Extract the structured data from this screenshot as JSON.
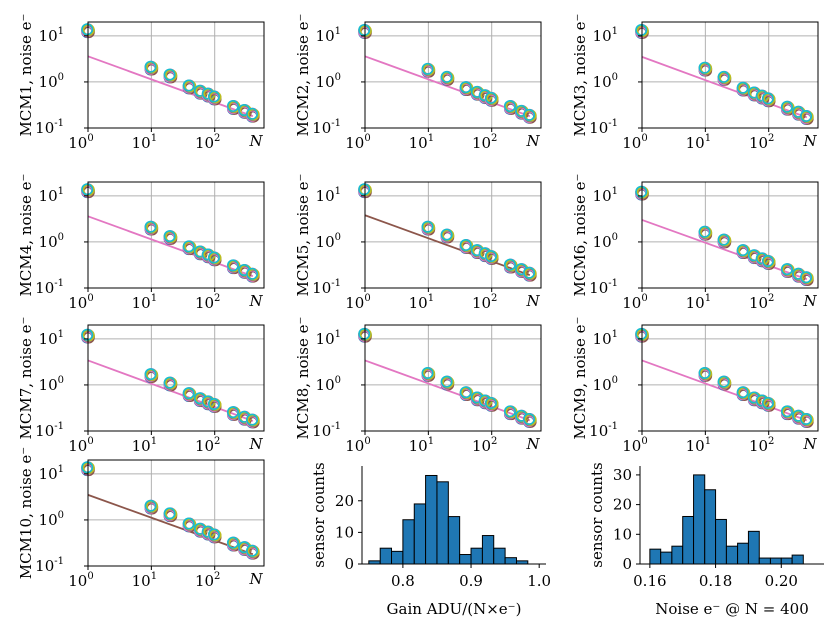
{
  "figure": {
    "log_panel_common": {
      "ylabel_suffix": "noise",
      "x_end_label": "N",
      "xlim": [
        1,
        600
      ],
      "ylim": [
        0.1,
        20
      ],
      "x_ticks": [
        {
          "base": "10",
          "exp": "0"
        },
        {
          "base": "10",
          "exp": "1"
        },
        {
          "base": "10",
          "exp": "2"
        }
      ],
      "y_ticks": [
        {
          "base": "10",
          "exp": "-1"
        },
        {
          "base": "10",
          "exp": "0"
        },
        {
          "base": "10",
          "exp": "1"
        }
      ],
      "e_symbol": "e",
      "e_sup": "−"
    }
  },
  "chart_data": [
    {
      "type": "scatter",
      "name": "MCM1",
      "ylabel": "MCM1, noise e⁻",
      "xscale": "log",
      "yscale": "log",
      "x": [
        1,
        10,
        20,
        40,
        60,
        80,
        100,
        200,
        300,
        400
      ],
      "y": [
        13,
        2.0,
        1.35,
        0.78,
        0.6,
        0.52,
        0.45,
        0.28,
        0.23,
        0.19
      ],
      "fit": {
        "x": [
          1,
          400
        ],
        "y": [
          3.6,
          0.18
        ],
        "color": "#e377c2"
      },
      "colors": [
        "#1f77b4",
        "#ff7f0e",
        "#2ca02c",
        "#d62728",
        "#9467bd",
        "#8c564b",
        "#e377c2",
        "#7f7f7f",
        "#bcbd22",
        "#17becf"
      ]
    },
    {
      "type": "scatter",
      "name": "MCM2",
      "ylabel": "MCM2, noise e⁻",
      "xscale": "log",
      "yscale": "log",
      "x": [
        1,
        10,
        20,
        40,
        60,
        80,
        100,
        200,
        300,
        400
      ],
      "y": [
        12.5,
        1.8,
        1.2,
        0.72,
        0.57,
        0.48,
        0.42,
        0.28,
        0.22,
        0.18
      ],
      "fit": {
        "x": [
          1,
          400
        ],
        "y": [
          3.6,
          0.18
        ],
        "color": "#e377c2"
      },
      "colors": [
        "#1f77b4",
        "#ff7f0e",
        "#2ca02c",
        "#d62728",
        "#9467bd",
        "#8c564b",
        "#e377c2",
        "#7f7f7f",
        "#bcbd22",
        "#17becf"
      ]
    },
    {
      "type": "scatter",
      "name": "MCM3",
      "ylabel": "MCM3, noise e⁻",
      "xscale": "log",
      "yscale": "log",
      "x": [
        1,
        10,
        20,
        40,
        60,
        80,
        100,
        200,
        300,
        400
      ],
      "y": [
        12.5,
        1.9,
        1.2,
        0.7,
        0.55,
        0.47,
        0.41,
        0.27,
        0.21,
        0.17
      ],
      "fit": {
        "x": [
          1,
          400
        ],
        "y": [
          3.5,
          0.17
        ],
        "color": "#e377c2"
      },
      "colors": [
        "#1f77b4",
        "#ff7f0e",
        "#2ca02c",
        "#d62728",
        "#9467bd",
        "#8c564b",
        "#e377c2",
        "#7f7f7f",
        "#bcbd22",
        "#17becf"
      ]
    },
    {
      "type": "scatter",
      "name": "MCM4",
      "ylabel": "MCM4, noise e⁻",
      "xscale": "log",
      "yscale": "log",
      "x": [
        1,
        10,
        20,
        40,
        60,
        80,
        100,
        200,
        300,
        400
      ],
      "y": [
        13,
        2.0,
        1.25,
        0.75,
        0.58,
        0.5,
        0.43,
        0.29,
        0.23,
        0.19
      ],
      "fit": {
        "x": [
          1,
          400
        ],
        "y": [
          3.6,
          0.18
        ],
        "color": "#e377c2"
      },
      "colors": [
        "#1f77b4",
        "#ff7f0e",
        "#2ca02c",
        "#d62728",
        "#9467bd",
        "#8c564b",
        "#e377c2",
        "#7f7f7f",
        "#bcbd22",
        "#17becf"
      ]
    },
    {
      "type": "scatter",
      "name": "MCM5",
      "ylabel": "MCM5, noise e⁻",
      "xscale": "log",
      "yscale": "log",
      "x": [
        1,
        10,
        20,
        40,
        60,
        80,
        100,
        200,
        300,
        400
      ],
      "y": [
        13,
        2.0,
        1.35,
        0.8,
        0.62,
        0.53,
        0.46,
        0.3,
        0.24,
        0.2
      ],
      "fit": {
        "x": [
          1,
          400
        ],
        "y": [
          3.8,
          0.19
        ],
        "color": "#8c564b"
      },
      "colors": [
        "#1f77b4",
        "#ff7f0e",
        "#2ca02c",
        "#d62728",
        "#9467bd",
        "#8c564b",
        "#e377c2",
        "#7f7f7f",
        "#bcbd22",
        "#17becf"
      ]
    },
    {
      "type": "scatter",
      "name": "MCM6",
      "ylabel": "MCM6, noise e⁻",
      "xscale": "log",
      "yscale": "log",
      "x": [
        1,
        10,
        20,
        40,
        60,
        80,
        100,
        200,
        300,
        400
      ],
      "y": [
        11.5,
        1.55,
        1.05,
        0.62,
        0.48,
        0.41,
        0.36,
        0.24,
        0.19,
        0.16
      ],
      "fit": {
        "x": [
          1,
          400
        ],
        "y": [
          3.0,
          0.155
        ],
        "color": "#e377c2"
      },
      "colors": [
        "#1f77b4",
        "#ff7f0e",
        "#2ca02c",
        "#d62728",
        "#9467bd",
        "#8c564b",
        "#e377c2",
        "#7f7f7f",
        "#bcbd22",
        "#17becf"
      ]
    },
    {
      "type": "scatter",
      "name": "MCM7",
      "ylabel": "MCM7, noise e⁻",
      "xscale": "log",
      "yscale": "log",
      "x": [
        1,
        10,
        20,
        40,
        60,
        80,
        100,
        200,
        300,
        400
      ],
      "y": [
        11.5,
        1.6,
        1.05,
        0.62,
        0.48,
        0.41,
        0.36,
        0.24,
        0.19,
        0.165
      ],
      "fit": {
        "x": [
          1,
          400
        ],
        "y": [
          3.4,
          0.165
        ],
        "color": "#e377c2"
      },
      "colors": [
        "#1f77b4",
        "#ff7f0e",
        "#2ca02c",
        "#d62728",
        "#9467bd",
        "#8c564b",
        "#e377c2",
        "#7f7f7f",
        "#bcbd22",
        "#17becf"
      ]
    },
    {
      "type": "scatter",
      "name": "MCM8",
      "ylabel": "MCM8, noise e⁻",
      "xscale": "log",
      "yscale": "log",
      "x": [
        1,
        10,
        20,
        40,
        60,
        80,
        100,
        200,
        300,
        400
      ],
      "y": [
        12,
        1.7,
        1.1,
        0.65,
        0.5,
        0.43,
        0.38,
        0.25,
        0.2,
        0.17
      ],
      "fit": {
        "x": [
          1,
          400
        ],
        "y": [
          3.4,
          0.17
        ],
        "color": "#e377c2"
      },
      "colors": [
        "#1f77b4",
        "#ff7f0e",
        "#2ca02c",
        "#d62728",
        "#9467bd",
        "#8c564b",
        "#e377c2",
        "#7f7f7f",
        "#bcbd22",
        "#17becf"
      ]
    },
    {
      "type": "scatter",
      "name": "MCM9",
      "ylabel": "MCM9, noise e⁻",
      "xscale": "log",
      "yscale": "log",
      "x": [
        1,
        10,
        20,
        40,
        60,
        80,
        100,
        200,
        300,
        400
      ],
      "y": [
        12,
        1.7,
        1.1,
        0.65,
        0.5,
        0.43,
        0.38,
        0.25,
        0.2,
        0.17
      ],
      "fit": {
        "x": [
          1,
          400
        ],
        "y": [
          3.4,
          0.17
        ],
        "color": "#e377c2"
      },
      "colors": [
        "#1f77b4",
        "#ff7f0e",
        "#2ca02c",
        "#d62728",
        "#9467bd",
        "#8c564b",
        "#e377c2",
        "#7f7f7f",
        "#bcbd22",
        "#17becf"
      ]
    },
    {
      "type": "scatter",
      "name": "MCM10",
      "ylabel": "MCM10, noise e⁻",
      "xscale": "log",
      "yscale": "log",
      "x": [
        1,
        10,
        20,
        40,
        60,
        80,
        100,
        200,
        300,
        400
      ],
      "y": [
        13,
        1.9,
        1.3,
        0.78,
        0.6,
        0.52,
        0.45,
        0.3,
        0.24,
        0.2
      ],
      "fit": {
        "x": [
          1,
          400
        ],
        "y": [
          3.5,
          0.18
        ],
        "color": "#8c564b"
      },
      "colors": [
        "#1f77b4",
        "#ff7f0e",
        "#2ca02c",
        "#d62728",
        "#9467bd",
        "#8c564b",
        "#e377c2",
        "#7f7f7f",
        "#bcbd22",
        "#17becf"
      ]
    },
    {
      "type": "bar",
      "name": "gain-histogram",
      "xlabel": "Gain ADU/(N×e⁻)",
      "ylabel": "sensor counts",
      "bin_edges": [
        0.75,
        0.7667,
        0.7833,
        0.8,
        0.8167,
        0.8333,
        0.85,
        0.8667,
        0.8833,
        0.9,
        0.9167,
        0.9333,
        0.95,
        0.9667,
        0.9833,
        1.0
      ],
      "counts": [
        1,
        5,
        4,
        14,
        19,
        28,
        26,
        15,
        3,
        5,
        9,
        5,
        2,
        1,
        0
      ],
      "xlim": [
        0.74,
        1.01
      ],
      "ylim": [
        0,
        31
      ],
      "x_ticks": [
        "0.8",
        "0.9",
        "1.0"
      ],
      "y_ticks": [
        "0",
        "10",
        "20"
      ],
      "color": "#1f77b4"
    },
    {
      "type": "bar",
      "name": "noise-histogram",
      "xlabel": "Noise e⁻ @ N = 400",
      "ylabel": "sensor counts",
      "bin_edges": [
        0.16,
        0.1633,
        0.1667,
        0.17,
        0.1733,
        0.1767,
        0.18,
        0.1833,
        0.1867,
        0.19,
        0.1933,
        0.1967,
        0.2,
        0.2033,
        0.2067,
        0.21
      ],
      "counts": [
        5,
        4,
        6,
        16,
        30,
        25,
        15,
        6,
        7,
        11,
        2,
        2,
        2,
        3,
        0
      ],
      "xlim": [
        0.157,
        0.213
      ],
      "ylim": [
        0,
        33
      ],
      "x_ticks": [
        "0.16",
        "0.18",
        "0.20"
      ],
      "y_ticks": [
        "0",
        "10",
        "20",
        "30"
      ],
      "color": "#1f77b4"
    }
  ]
}
